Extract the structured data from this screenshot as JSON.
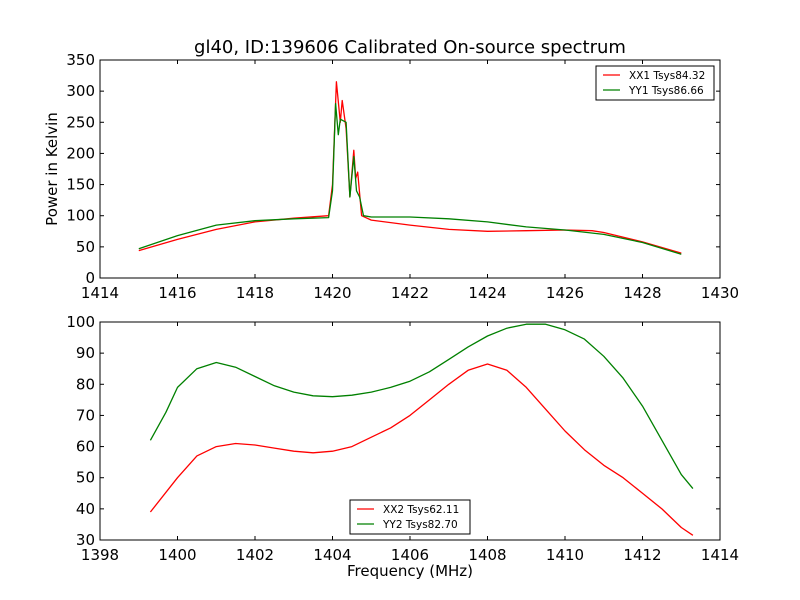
{
  "chart_data": [
    {
      "type": "line",
      "title": "gl40, ID:139606 Calibrated On-source spectrum",
      "xlabel": "",
      "ylabel": "Power in Kelvin",
      "xlim": [
        1414,
        1430
      ],
      "ylim": [
        0,
        350
      ],
      "xticks": [
        1414,
        1416,
        1418,
        1420,
        1422,
        1424,
        1426,
        1428,
        1430
      ],
      "yticks": [
        0,
        50,
        100,
        150,
        200,
        250,
        300,
        350
      ],
      "legend_position": "top-right",
      "series": [
        {
          "name": "XX1 Tsys84.32",
          "color": "#ff0000",
          "x": [
            1415,
            1416,
            1417,
            1418,
            1419,
            1419.9,
            1420.0,
            1420.1,
            1420.2,
            1420.25,
            1420.35,
            1420.45,
            1420.55,
            1420.6,
            1420.65,
            1420.75,
            1421,
            1422,
            1423,
            1424,
            1425,
            1426,
            1426.7,
            1427,
            1428,
            1429
          ],
          "y": [
            44,
            62,
            78,
            90,
            96,
            100,
            150,
            315,
            250,
            285,
            240,
            130,
            205,
            160,
            170,
            100,
            93,
            85,
            78,
            75,
            76,
            77,
            76,
            73,
            58,
            40
          ]
        },
        {
          "name": "YY1 Tsys86.66",
          "color": "#008000",
          "x": [
            1415,
            1416,
            1417,
            1418,
            1419,
            1419.9,
            1420.0,
            1420.08,
            1420.15,
            1420.2,
            1420.35,
            1420.45,
            1420.55,
            1420.62,
            1420.7,
            1420.8,
            1421,
            1422,
            1423,
            1424,
            1425,
            1426,
            1427,
            1428,
            1429
          ],
          "y": [
            47,
            68,
            85,
            92,
            95,
            97,
            140,
            280,
            230,
            255,
            250,
            130,
            195,
            140,
            130,
            100,
            98,
            98,
            95,
            90,
            82,
            77,
            70,
            57,
            38
          ]
        }
      ]
    },
    {
      "type": "line",
      "title": "",
      "xlabel": "Frequency (MHz)",
      "ylabel": "",
      "xlim": [
        1398,
        1414
      ],
      "ylim": [
        30,
        100
      ],
      "xticks": [
        1398,
        1400,
        1402,
        1404,
        1406,
        1408,
        1410,
        1412,
        1414
      ],
      "yticks": [
        30,
        40,
        50,
        60,
        70,
        80,
        90,
        100
      ],
      "legend_position": "bottom-center",
      "series": [
        {
          "name": "XX2 Tsys62.11",
          "color": "#ff0000",
          "x": [
            1399.3,
            1400,
            1400.5,
            1401,
            1401.5,
            1402,
            1402.5,
            1403,
            1403.5,
            1404,
            1404.5,
            1405,
            1405.5,
            1406,
            1406.5,
            1407,
            1407.5,
            1408,
            1408.5,
            1409,
            1409.5,
            1410,
            1410.5,
            1411,
            1411.5,
            1412,
            1412.5,
            1413,
            1413.3
          ],
          "y": [
            39,
            50,
            57,
            60,
            61,
            60.5,
            59.5,
            58.5,
            58,
            58.5,
            60,
            63,
            66,
            70,
            75,
            80,
            84.5,
            86.5,
            84.5,
            79,
            72,
            65,
            59,
            54,
            50,
            45,
            40,
            34,
            31.5
          ]
        },
        {
          "name": "YY2 Tsys82.70",
          "color": "#008000",
          "x": [
            1399.3,
            1399.7,
            1400,
            1400.5,
            1401,
            1401.5,
            1402,
            1402.5,
            1403,
            1403.5,
            1404,
            1404.5,
            1405,
            1405.5,
            1406,
            1406.5,
            1407,
            1407.5,
            1408,
            1408.5,
            1409,
            1409.5,
            1410,
            1410.5,
            1411,
            1411.5,
            1412,
            1412.5,
            1413,
            1413.3
          ],
          "y": [
            62,
            71,
            79,
            85,
            87,
            85.5,
            82.5,
            79.5,
            77.5,
            76.3,
            76,
            76.5,
            77.5,
            79,
            81,
            84,
            88,
            92,
            95.5,
            98,
            99.3,
            99.3,
            97.5,
            94.5,
            89,
            82,
            73,
            62,
            51,
            46.5
          ]
        }
      ]
    }
  ]
}
